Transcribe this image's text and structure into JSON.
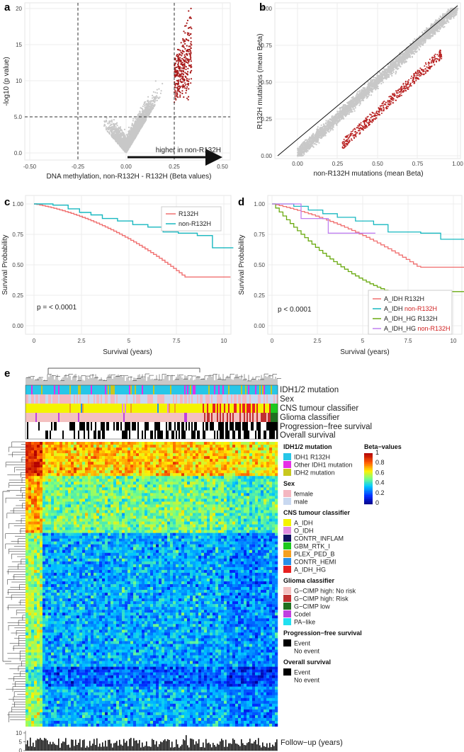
{
  "panels": {
    "a": {
      "label": "a",
      "x_title": "DNA methylation, non-R132H - R132H (Beta values)",
      "y_title": "-log10 (p value)",
      "x_ticks": [
        "-0.50",
        "-0.25",
        "0.00",
        "0.25",
        "0.50"
      ],
      "y_ticks": [
        "0.0",
        "5.0",
        "10",
        "15",
        "20"
      ],
      "arrow_label": "higher in non-R132H",
      "threshold_y": 5.0,
      "threshold_x": [
        -0.25,
        0.25
      ]
    },
    "b": {
      "label": "b",
      "x_title": "non-R132H mutations (mean Beta)",
      "y_title": "R132H mutations (mean Beta)",
      "x_ticks": [
        "0.00",
        "0.25",
        "0.50",
        "0.75",
        "1.00"
      ],
      "y_ticks": [
        "0.00",
        "0.25",
        "0.50",
        "0.75",
        "1.00"
      ]
    },
    "c": {
      "label": "c",
      "x_title": "Survival (years)",
      "y_title": "Survival Probability",
      "x_ticks": [
        "0",
        "2.5",
        "5",
        "7.5",
        "10"
      ],
      "y_ticks": [
        "0.00",
        "0.25",
        "0.50",
        "0.75",
        "1.00"
      ],
      "pvalue": "p = < 0.0001",
      "legend": [
        {
          "name": "R132H",
          "color": "#f07070"
        },
        {
          "name": "non-R132H",
          "color": "#18b8c0"
        }
      ]
    },
    "d": {
      "label": "d",
      "x_title": "Survival (years)",
      "y_title": "Survival Probability",
      "x_ticks": [
        "0",
        "2.5",
        "5",
        "7.5",
        "10"
      ],
      "y_ticks": [
        "0.00",
        "0.25",
        "0.50",
        "0.75",
        "1.00"
      ],
      "pvalue": "p < 0.0001",
      "legend": [
        {
          "prefix": "A_IDH ",
          "suffix": "R132H",
          "suffix_color": "#222",
          "color": "#f07070"
        },
        {
          "prefix": "A_IDH ",
          "suffix": "non-R132H",
          "suffix_color": "#d02020",
          "color": "#18b8c0"
        },
        {
          "prefix": "A_IDH_HG ",
          "suffix": "R132H",
          "suffix_color": "#222",
          "color": "#6aaa10"
        },
        {
          "prefix": "A_IDH_HG ",
          "suffix": "non-R132H",
          "suffix_color": "#d02020",
          "color": "#c080f0"
        }
      ]
    },
    "e": {
      "label": "e",
      "track_labels": [
        "IDH1/2 mutation",
        "Sex",
        "CNS tumour classifier",
        "Glioma classifier",
        "Progression−free survival",
        "Overall survival"
      ],
      "followup_label": "Follow−up (years)",
      "followup_ticks": [
        "0",
        "5",
        "10"
      ],
      "legend_groups": [
        {
          "title": "IDH1/2 mutation",
          "items": [
            {
              "name": "IDH1 R132H",
              "color": "#27c6e8"
            },
            {
              "name": "Other IDH1 mutation",
              "color": "#e62ee6"
            },
            {
              "name": "IDH2 mutation",
              "color": "#c8c81e"
            }
          ]
        },
        {
          "title": "Sex",
          "items": [
            {
              "name": "female",
              "color": "#f4b6c0"
            },
            {
              "name": "male",
              "color": "#c8d8f0"
            }
          ]
        },
        {
          "title": "CNS tumour classifier",
          "items": [
            {
              "name": "A_IDH",
              "color": "#f4f400"
            },
            {
              "name": "O_IDH",
              "color": "#e08ce0"
            },
            {
              "name": "CONTR_INFLAM",
              "color": "#101060"
            },
            {
              "name": "GBM_RTK_I",
              "color": "#1ec81e"
            },
            {
              "name": "PLEX_PED_B",
              "color": "#f4a020"
            },
            {
              "name": "CONTR_HEMI",
              "color": "#2890e8"
            },
            {
              "name": "A_IDH_HG",
              "color": "#e82020"
            }
          ]
        },
        {
          "title": "Glioma classifier",
          "items": [
            {
              "name": "G−CIMP high: No risk",
              "color": "#f4c0c0"
            },
            {
              "name": "G−CIMP high: Risk",
              "color": "#c03030"
            },
            {
              "name": "G−CIMP low",
              "color": "#207020"
            },
            {
              "name": "Codel",
              "color": "#c040e0"
            },
            {
              "name": "PA−like",
              "color": "#20e0f0"
            }
          ]
        },
        {
          "title": "Progression−free survival",
          "items": [
            {
              "name": "Event",
              "color": "#000000"
            },
            {
              "name": "No event",
              "color": "#ffffff"
            }
          ]
        },
        {
          "title": "Overall survival",
          "items": [
            {
              "name": "Event",
              "color": "#000000"
            },
            {
              "name": "No event",
              "color": "#ffffff"
            }
          ]
        }
      ],
      "colorbar": {
        "title": "Beta−values",
        "ticks": [
          "1",
          "0.8",
          "0.6",
          "0.4",
          "0.2",
          "0"
        ]
      }
    }
  }
}
